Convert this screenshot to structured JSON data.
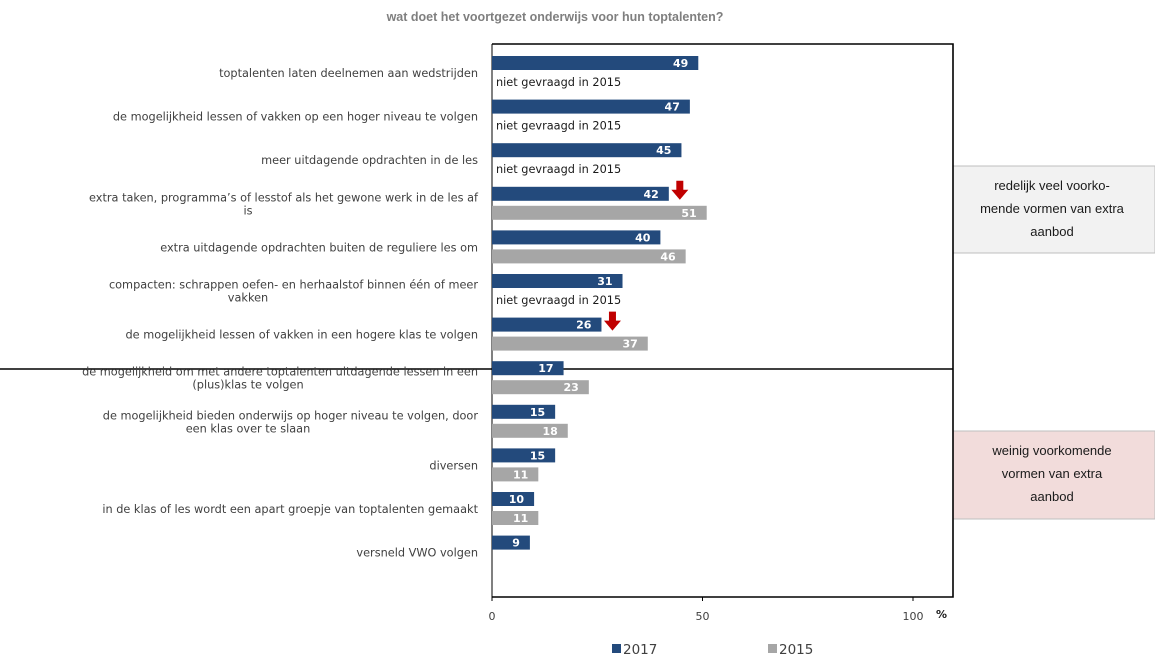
{
  "chart_data": {
    "type": "bar",
    "orientation": "horizontal",
    "title": "wat doet het voortgezet onderwijs voor hun toptalenten?",
    "unit": "%",
    "xlim": [
      0,
      100
    ],
    "xticks": [
      "0",
      "50",
      "100"
    ],
    "categories": [
      [
        "toptalenten laten deelnemen aan wedstrijden"
      ],
      [
        "de mogelijkheid lessen of vakken op een hoger niveau te volgen"
      ],
      [
        "meer uitdagende opdrachten in de les"
      ],
      [
        "extra taken, programma’s  of lesstof als het gewone werk in de les af",
        "is"
      ],
      [
        "extra uitdagende opdrachten buiten de reguliere les om"
      ],
      [
        "compacten: schrappen oefen- en herhaalstof binnen één of meer",
        "vakken"
      ],
      [
        "de mogelijkheid lessen of vakken in een hogere klas te volgen"
      ],
      [
        "de mogelijkheid om met andere toptalenten uitdagende lessen in een",
        "(plus)klas te volgen"
      ],
      [
        "de mogelijkheid bieden onderwijs op hoger niveau te volgen, door",
        "een klas over te slaan"
      ],
      [
        "diversen"
      ],
      [
        "in de klas of les wordt een apart groepje van toptalenten gemaakt"
      ],
      [
        "versneld VWO volgen"
      ]
    ],
    "series": [
      {
        "name": "2017",
        "color": "#234a7c",
        "values": [
          49,
          47,
          45,
          42,
          40,
          31,
          26,
          17,
          15,
          15,
          10,
          9
        ]
      },
      {
        "name": "2015",
        "color": "#a6a6a6",
        "values": [
          null,
          null,
          null,
          51,
          46,
          null,
          37,
          23,
          18,
          11,
          11,
          null
        ]
      }
    ],
    "not_asked_text": "niet gevraagd in 2015",
    "not_asked_indices": [
      0,
      1,
      2,
      5
    ],
    "decrease_marker_indices": [
      3,
      6
    ],
    "decrease_marker_color": "#c00000",
    "legend_position": "bottom",
    "groups": [
      {
        "text": [
          "redelijk veel voorko-",
          "mende vormen van extra",
          "aanbod"
        ],
        "fill": "#f2f2f2",
        "categories": [
          0,
          6
        ]
      },
      {
        "text": [
          "weinig voorkomende",
          "vormen van extra",
          "aanbod"
        ],
        "fill": "#f2dcdb",
        "categories": [
          7,
          11
        ]
      }
    ]
  }
}
